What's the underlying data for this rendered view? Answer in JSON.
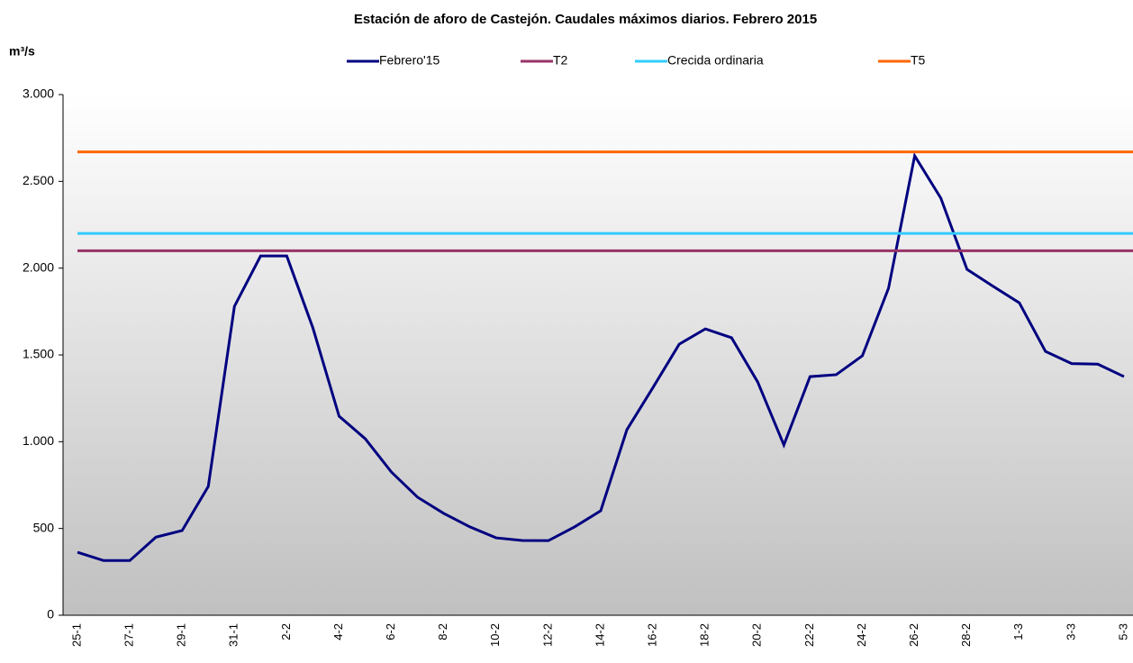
{
  "chart_data": {
    "type": "line",
    "title": "Estación de aforo de Castejón. Caudales máximos diarios. Febrero 2015",
    "y_label": "m³/s",
    "categories": [
      "25-1",
      null,
      "27-1",
      null,
      "29-1",
      null,
      "31-1",
      null,
      "2-2",
      null,
      "4-2",
      null,
      "6-2",
      null,
      "8-2",
      null,
      "10-2",
      null,
      "12-2",
      null,
      "14-2",
      null,
      "16-2",
      null,
      "18-2",
      null,
      "20-2",
      null,
      "22-2",
      null,
      "24-2",
      null,
      "26-2",
      null,
      "28-2",
      null,
      "1-3",
      null,
      "3-3",
      null,
      "5-3"
    ],
    "series": [
      {
        "name": "Febrero'15",
        "color": "#000080",
        "values": [
          363,
          315,
          315,
          450,
          488,
          742,
          1780,
          2070,
          2070,
          1655,
          1147,
          1017,
          825,
          680,
          587,
          509,
          446,
          431,
          430,
          509,
          602,
          1069,
          1313,
          1562,
          1650,
          1599,
          1344,
          981,
          1375,
          1386,
          1495,
          1884,
          2647,
          2403,
          1993,
          1895,
          1800,
          1520,
          1450,
          1447,
          1375
        ]
      },
      {
        "name": "T2",
        "color": "#993366",
        "value": 2100
      },
      {
        "name": "Crecida ordinaria",
        "color": "#33ccff",
        "value": 2200
      },
      {
        "name": "T5",
        "color": "#ff6600",
        "value": 2670
      }
    ],
    "ylim": [
      0,
      3000
    ],
    "yticks": [
      0,
      500,
      {
        "value": 1000,
        "label": "1.000"
      },
      {
        "value": 1500,
        "label": "1.500"
      },
      {
        "value": 2000,
        "label": "2.000"
      },
      {
        "value": 2500,
        "label": "2.500"
      },
      {
        "value": 3000,
        "label": "3.000"
      }
    ],
    "grid": false
  }
}
